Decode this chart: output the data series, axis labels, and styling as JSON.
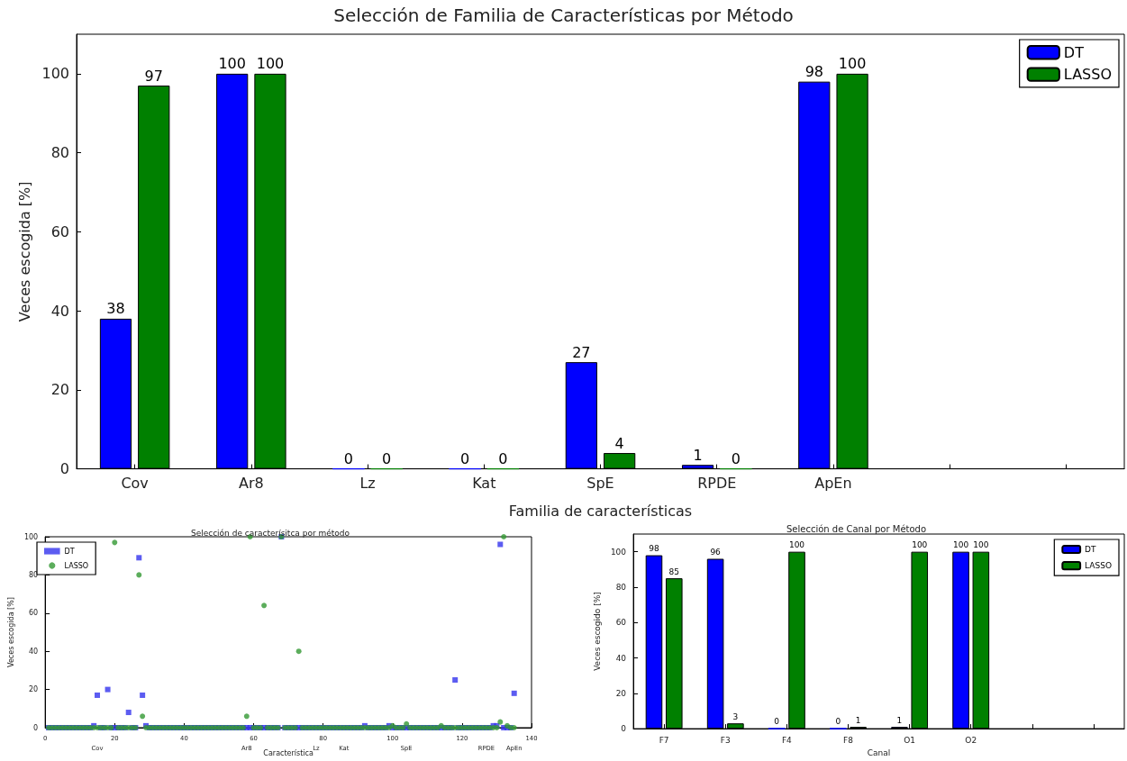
{
  "chart_data": [
    {
      "type": "bar",
      "title": "Selección de Familia de Características por Método",
      "xlabel": "Familia de características",
      "ylabel": "Veces escogida [%]",
      "categories": [
        "Cov",
        "Ar8",
        "Lz",
        "Kat",
        "SpE",
        "RPDE",
        "ApEn"
      ],
      "series": [
        {
          "name": "DT",
          "color": "#0000ff",
          "values": [
            38,
            100,
            0,
            0,
            27,
            1,
            98
          ]
        },
        {
          "name": "LASSO",
          "color": "#008000",
          "values": [
            97,
            100,
            0,
            0,
            4,
            0,
            100
          ]
        }
      ],
      "ylim": [
        0,
        110
      ],
      "yticks": [
        0,
        20,
        40,
        60,
        80,
        100
      ],
      "grid": false,
      "legend": "top right",
      "data_labels": true
    },
    {
      "type": "scatter",
      "title": "Selección de caracterísitca por método",
      "xlabel": "Característica",
      "ylabel": "Veces escogida [%]",
      "x": [
        1,
        2,
        3,
        4,
        5,
        6,
        7,
        8,
        9,
        10,
        11,
        12,
        13,
        14,
        15,
        16,
        17,
        18,
        19,
        20,
        21,
        22,
        23,
        24,
        25,
        26,
        27,
        28,
        29,
        30,
        31,
        32,
        33,
        34,
        35,
        36,
        37,
        38,
        39,
        40,
        41,
        42,
        43,
        44,
        45,
        46,
        47,
        48,
        49,
        50,
        51,
        52,
        53,
        54,
        55,
        56,
        57,
        58,
        59,
        60,
        61,
        62,
        63,
        64,
        65,
        66,
        67,
        68,
        69,
        70,
        71,
        72,
        73,
        74,
        75,
        76,
        77,
        78,
        79,
        80,
        81,
        82,
        83,
        84,
        85,
        86,
        87,
        88,
        89,
        90,
        91,
        92,
        93,
        94,
        95,
        96,
        97,
        98,
        99,
        100,
        101,
        102,
        103,
        104,
        105,
        106,
        107,
        108,
        109,
        110,
        111,
        112,
        113,
        114,
        115,
        116,
        117,
        118,
        119,
        120,
        121,
        122,
        123,
        124,
        125,
        126,
        127,
        128,
        129,
        130,
        131,
        132,
        133,
        134,
        135
      ],
      "series": [
        {
          "name": "DT",
          "color": "#3333ee",
          "marker": "square",
          "values": [
            0,
            0,
            0,
            0,
            0,
            0,
            0,
            0,
            0,
            0,
            0,
            0,
            0,
            1,
            17,
            0,
            0,
            20,
            0,
            0,
            0,
            0,
            0,
            8,
            0,
            0,
            89,
            17,
            1,
            0,
            0,
            0,
            0,
            0,
            0,
            0,
            0,
            0,
            0,
            0,
            0,
            0,
            0,
            0,
            0,
            0,
            0,
            0,
            0,
            0,
            0,
            0,
            0,
            0,
            0,
            0,
            0,
            0,
            0,
            0,
            0,
            0,
            0,
            0,
            0,
            0,
            0,
            100,
            0,
            0,
            0,
            0,
            0,
            0,
            0,
            0,
            0,
            0,
            0,
            0,
            0,
            0,
            0,
            0,
            0,
            0,
            0,
            0,
            0,
            0,
            0,
            1,
            0,
            0,
            0,
            0,
            0,
            0,
            1,
            0,
            0,
            0,
            0,
            0,
            0,
            0,
            0,
            0,
            0,
            0,
            0,
            0,
            0,
            0,
            0,
            0,
            0,
            25,
            0,
            0,
            0,
            0,
            0,
            0,
            0,
            0,
            0,
            0,
            1,
            1,
            96,
            0,
            0,
            0,
            18
          ]
        },
        {
          "name": "LASSO",
          "color": "#339933",
          "marker": "circle",
          "values": [
            0,
            0,
            0,
            0,
            0,
            0,
            0,
            0,
            0,
            0,
            0,
            0,
            0,
            0,
            0,
            0,
            0,
            0,
            0,
            97,
            0,
            0,
            0,
            0,
            0,
            0,
            80,
            6,
            0,
            0,
            0,
            0,
            0,
            0,
            0,
            0,
            0,
            0,
            0,
            0,
            0,
            0,
            0,
            0,
            0,
            0,
            0,
            0,
            0,
            0,
            0,
            0,
            0,
            0,
            0,
            0,
            0,
            6,
            100,
            0,
            0,
            0,
            64,
            0,
            0,
            0,
            0,
            100,
            0,
            0,
            0,
            0,
            40,
            0,
            0,
            0,
            0,
            0,
            0,
            0,
            0,
            0,
            0,
            0,
            0,
            0,
            0,
            0,
            0,
            0,
            0,
            0,
            0,
            0,
            0,
            0,
            0,
            0,
            0,
            1,
            0,
            0,
            0,
            2,
            0,
            0,
            0,
            0,
            0,
            0,
            0,
            0,
            0,
            1,
            0,
            0,
            0,
            0,
            0,
            0,
            0,
            0,
            0,
            0,
            0,
            0,
            0,
            0,
            0,
            0,
            3,
            100,
            1,
            0,
            0
          ]
        }
      ],
      "xlim": [
        0,
        140
      ],
      "xticks": [
        0,
        20,
        40,
        60,
        80,
        100,
        120,
        140
      ],
      "annotations": [
        "Cov",
        "Ar8",
        "Lz",
        "Kat",
        "SpE",
        "RPDE",
        "ApEn"
      ],
      "ylim": [
        0,
        100
      ],
      "yticks": [
        0,
        20,
        40,
        60,
        80,
        100
      ],
      "grid": false,
      "legend": "top left"
    },
    {
      "type": "bar",
      "title": "Selección de Canal por Método",
      "xlabel": "Canal",
      "ylabel": "Veces escogido [%]",
      "categories": [
        "F7",
        "F3",
        "F4",
        "F8",
        "O1",
        "O2"
      ],
      "series": [
        {
          "name": "DT",
          "color": "#0000ff",
          "values": [
            98,
            96,
            0,
            0,
            1,
            100
          ]
        },
        {
          "name": "LASSO",
          "color": "#008000",
          "values": [
            85,
            3,
            100,
            1,
            100,
            100
          ]
        }
      ],
      "ylim": [
        0,
        110
      ],
      "yticks": [
        0,
        20,
        40,
        60,
        80,
        100
      ],
      "grid": false,
      "legend": "top right",
      "data_labels": true
    }
  ]
}
